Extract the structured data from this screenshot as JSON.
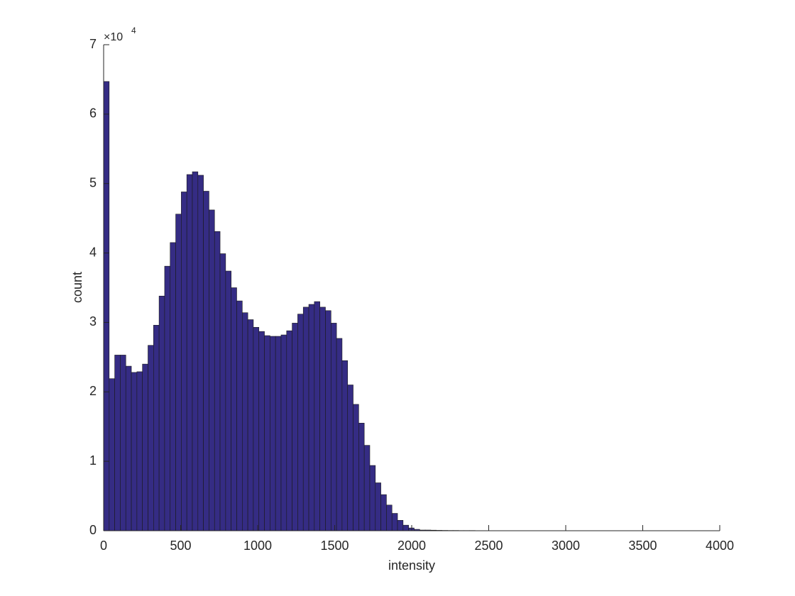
{
  "chart_data": {
    "type": "histogram",
    "xlabel": "intensity",
    "ylabel": "count",
    "y_multiplier": "×10",
    "y_exponent": "4",
    "color": "#352c84",
    "bins": [
      0,
      36,
      72,
      108,
      144,
      180,
      216,
      252,
      288,
      324,
      360,
      396,
      432,
      468,
      504,
      540,
      576,
      612,
      648,
      684,
      720,
      756,
      792,
      828,
      864,
      900,
      936,
      972,
      1008,
      1044,
      1080,
      1116,
      1152,
      1188,
      1224,
      1260,
      1296,
      1332,
      1368,
      1404,
      1440,
      1476,
      1512,
      1548,
      1584,
      1620,
      1656,
      1692,
      1728,
      1764,
      1800,
      1836,
      1872,
      1908,
      1944,
      1980,
      2016,
      2052,
      2088,
      2124,
      2160,
      2196,
      2232,
      2268,
      2304,
      2340,
      2376,
      2412,
      2448,
      2484,
      2520,
      2556,
      2592,
      2628,
      2664,
      2700,
      2736,
      2772,
      2808,
      2844,
      2880,
      2916,
      2952,
      2988,
      3024,
      3060,
      3096,
      3132,
      3168,
      3204,
      3240,
      3276,
      3312,
      3348,
      3384,
      3420,
      3456,
      3492,
      3528,
      3564,
      3600
    ],
    "values": [
      6.47,
      2.19,
      2.53,
      2.53,
      2.37,
      2.28,
      2.29,
      2.4,
      2.67,
      2.96,
      3.38,
      3.81,
      4.15,
      4.56,
      4.88,
      5.13,
      5.17,
      5.12,
      4.89,
      4.62,
      4.31,
      3.99,
      3.74,
      3.5,
      3.31,
      3.14,
      3.04,
      2.93,
      2.87,
      2.81,
      2.8,
      2.8,
      2.82,
      2.88,
      2.99,
      3.12,
      3.22,
      3.26,
      3.3,
      3.22,
      3.17,
      2.99,
      2.77,
      2.45,
      2.1,
      1.82,
      1.55,
      1.23,
      0.94,
      0.69,
      0.52,
      0.37,
      0.25,
      0.15,
      0.08,
      0.04,
      0.02,
      0.01,
      0.01,
      0.008,
      0.006,
      0.005,
      0.004,
      0.004,
      0.003,
      0.003,
      0.003,
      0.002,
      0.002,
      0.002,
      0.002,
      0.002,
      0.002,
      0.002,
      0.001,
      0.001,
      0.001,
      0.001,
      0.001,
      0.001,
      0.001,
      0.001,
      0.001,
      0.001,
      0.001,
      0.001,
      0.001,
      0.001,
      0.001,
      0.001,
      0.001,
      0.001,
      0.001,
      0.001,
      0.001,
      0.001,
      0.001,
      0.001,
      0.001,
      0.001
    ],
    "xlim": [
      0,
      4000
    ],
    "xticks": [
      0,
      500,
      1000,
      1500,
      2000,
      2500,
      3000,
      3500,
      4000
    ],
    "ylim": [
      0,
      7
    ],
    "yticks": [
      0,
      1,
      2,
      3,
      4,
      5,
      6,
      7
    ]
  }
}
